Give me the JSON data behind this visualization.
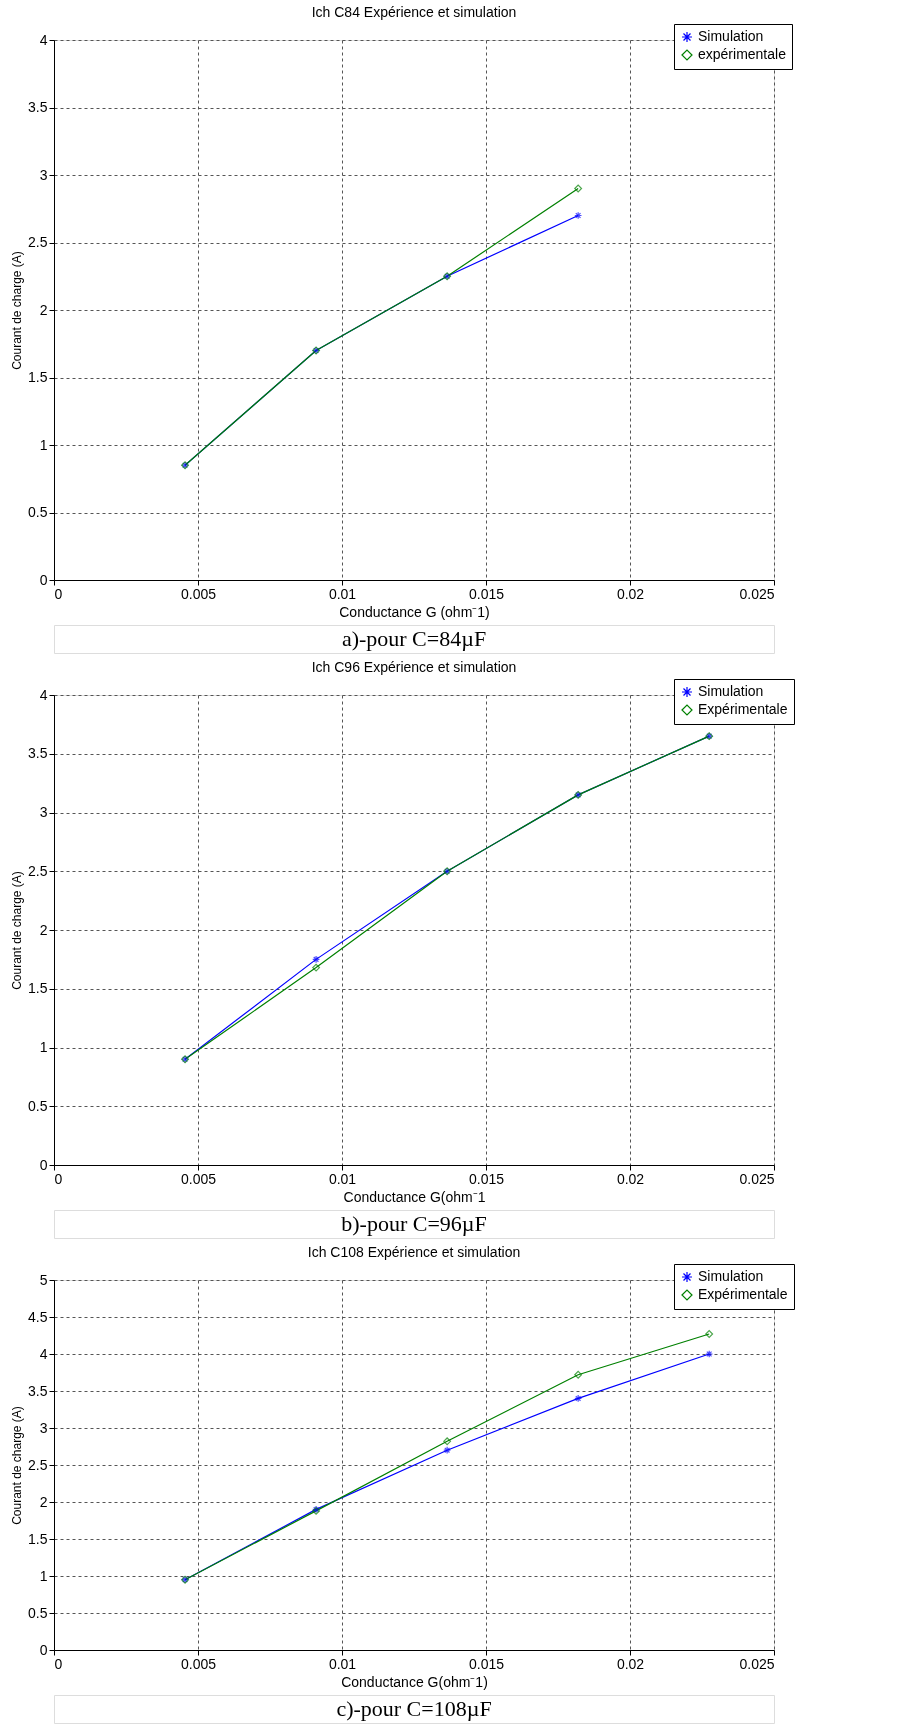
{
  "chart_data": [
    {
      "type": "line",
      "title": "Ich C84 Expérience et simulation",
      "xlabel": "Conductance G (ohm⁻1)",
      "ylabel": "Courant de charge (A)",
      "x": [
        0.00455,
        0.0091,
        0.01365,
        0.0182
      ],
      "series": [
        {
          "name": "Simulation",
          "color": "#0000ff",
          "marker": "cross",
          "values": [
            0.85,
            1.7,
            2.25,
            2.7
          ]
        },
        {
          "name": "expérimentale",
          "color": "#008000",
          "marker": "diamond",
          "values": [
            0.85,
            1.7,
            2.25,
            2.9
          ]
        }
      ],
      "xlim": [
        0,
        0.025
      ],
      "xticks": [
        0,
        0.005,
        0.01,
        0.015,
        0.02,
        0.025
      ],
      "ylim": [
        0,
        4
      ],
      "yticks": [
        0,
        0.5,
        1,
        1.5,
        2,
        2.5,
        3,
        3.5,
        4
      ],
      "grid": true,
      "legend": "top right",
      "line_style": "solid",
      "annotations": [
        "a)-pour C=84µF"
      ]
    },
    {
      "type": "line",
      "title": "Ich C96 Expérience et simulation",
      "xlabel": "Conductance G(ohm⁻1",
      "ylabel": "Courant de charge (A)",
      "x": [
        0.00455,
        0.0091,
        0.01365,
        0.0182,
        0.02275
      ],
      "series": [
        {
          "name": "Simulation",
          "color": "#0000ff",
          "marker": "cross",
          "values": [
            0.9,
            1.75,
            2.5,
            3.15,
            3.65
          ]
        },
        {
          "name": "Expérimentale",
          "color": "#008000",
          "marker": "diamond",
          "values": [
            0.9,
            1.68,
            2.5,
            3.15,
            3.65
          ]
        }
      ],
      "xlim": [
        0,
        0.025
      ],
      "xticks": [
        0,
        0.005,
        0.01,
        0.015,
        0.02,
        0.025
      ],
      "ylim": [
        0,
        4
      ],
      "yticks": [
        0,
        0.5,
        1,
        1.5,
        2,
        2.5,
        3,
        3.5,
        4
      ],
      "grid": true,
      "legend": "top right",
      "line_style": "solid",
      "annotations": [
        "b)-pour C=96µF"
      ]
    },
    {
      "type": "line",
      "title": "Ich C108 Expérience et simulation",
      "xlabel": "Conductance G(ohm⁻1)",
      "ylabel": "Courant de charge (A)",
      "x": [
        0.00455,
        0.0091,
        0.01365,
        0.0182,
        0.02275
      ],
      "series": [
        {
          "name": "Simulation",
          "color": "#0000ff",
          "marker": "cross",
          "values": [
            0.95,
            1.9,
            2.7,
            3.4,
            4.0
          ]
        },
        {
          "name": "Expérimentale",
          "color": "#008000",
          "marker": "diamond",
          "values": [
            0.95,
            1.88,
            2.82,
            3.72,
            4.27
          ]
        }
      ],
      "xlim": [
        0,
        0.025
      ],
      "xticks": [
        0,
        0.005,
        0.01,
        0.015,
        0.02,
        0.025
      ],
      "ylim": [
        0,
        5
      ],
      "yticks": [
        0,
        0.5,
        1,
        1.5,
        2,
        2.5,
        3,
        3.5,
        4,
        4.5,
        5
      ],
      "grid": true,
      "legend": "top right",
      "line_style": "solid",
      "annotations": [
        "c)-pour C=108µF"
      ]
    }
  ]
}
